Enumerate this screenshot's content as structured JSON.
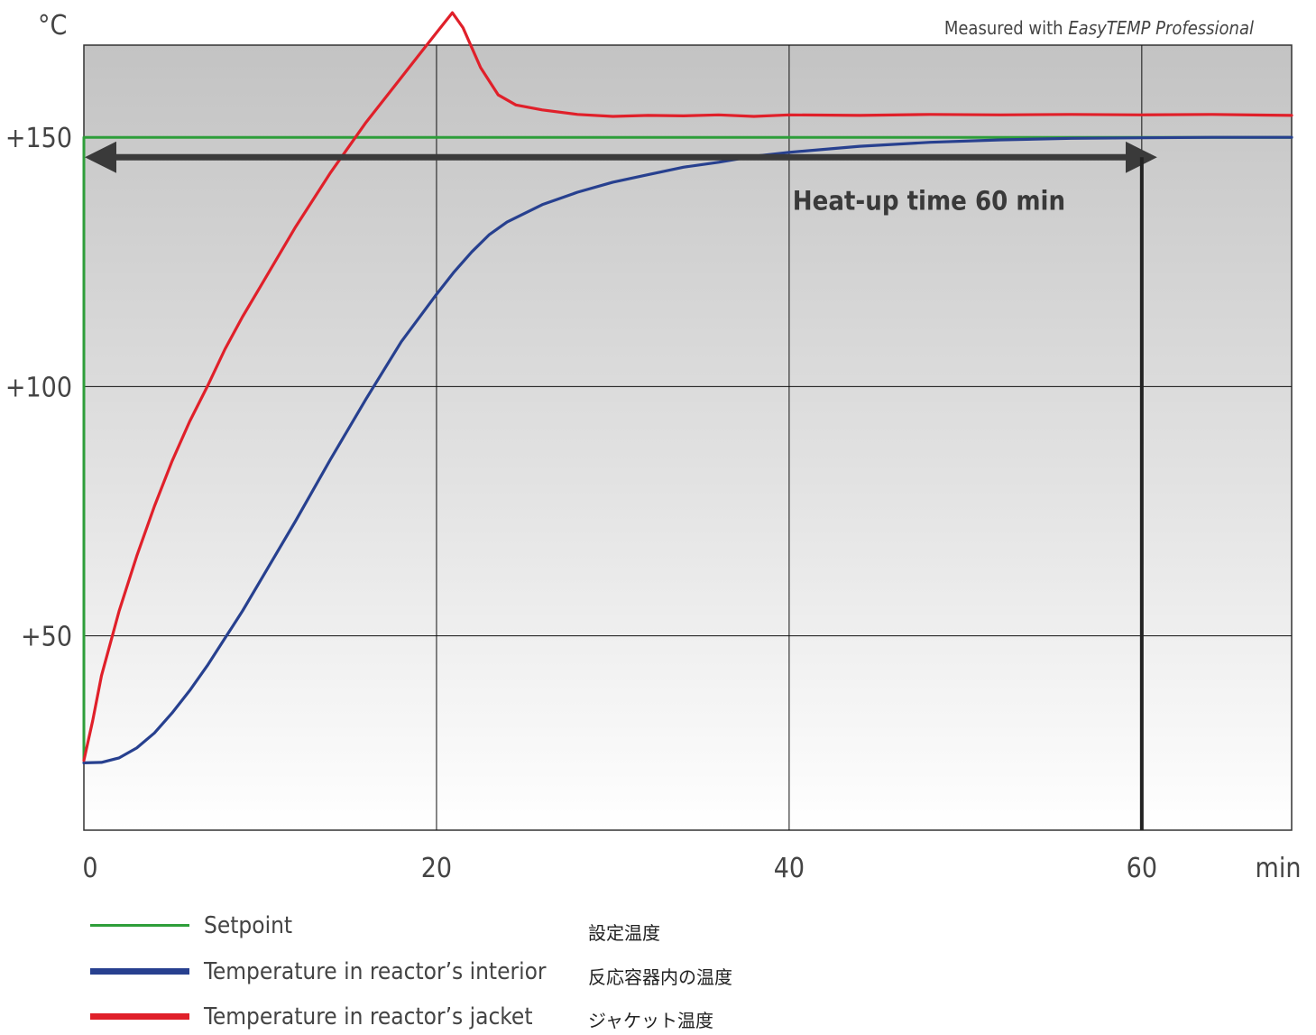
{
  "chart_data": {
    "type": "line",
    "ylabel": "°C",
    "xlabel": "min",
    "note_prefix": "Measured with ",
    "note_product": "EasyTEMP Professional",
    "xlim": [
      0,
      68.5
    ],
    "ylim": [
      11,
      168.5
    ],
    "x_ticks": [
      {
        "value": 0,
        "label": "0"
      },
      {
        "value": 20,
        "label": "20"
      },
      {
        "value": 40,
        "label": "40"
      },
      {
        "value": 60,
        "label": "60"
      }
    ],
    "y_ticks": [
      {
        "value": 50,
        "label": "+50"
      },
      {
        "value": 100,
        "label": "+100"
      },
      {
        "value": 150,
        "label": "+150"
      }
    ],
    "grid": true,
    "colors": {
      "setpoint": "#2e9e3a",
      "interior": "#27408f",
      "jacket": "#e0202a",
      "arrow": "#3a3a3a",
      "grid": "#111111"
    },
    "annotation": {
      "text": "Heat-up time 60 min",
      "x_start": 0,
      "x_end": 60,
      "y": 146
    },
    "series": [
      {
        "name": "Setpoint",
        "name_jp": "設定温度",
        "color": "#2e9e3a",
        "x": [
          0,
          0,
          68.5
        ],
        "y": [
          25,
          150,
          150
        ]
      },
      {
        "name": "Temperature in reactor’s interior",
        "name_jp": "反応容器内の温度",
        "color": "#27408f",
        "x": [
          0,
          1,
          2,
          3,
          4,
          5,
          6,
          7,
          8,
          9,
          10,
          12,
          14,
          16,
          18,
          20,
          21,
          22,
          23,
          24,
          26,
          28,
          30,
          32,
          34,
          36,
          38,
          40,
          44,
          48,
          52,
          56,
          60,
          64,
          68.5
        ],
        "y": [
          24.5,
          24.6,
          25.5,
          27.5,
          30.5,
          34.5,
          39,
          44,
          49.5,
          55,
          61,
          73,
          85.5,
          97.5,
          109,
          118.5,
          123,
          127,
          130.5,
          133,
          136.5,
          139,
          141,
          142.5,
          144,
          145,
          146.2,
          147,
          148.2,
          149,
          149.5,
          149.8,
          149.9,
          150,
          150
        ]
      },
      {
        "name": "Temperature in reactor’s jacket",
        "name_jp": "ジャケット温度",
        "color": "#e0202a",
        "x": [
          0,
          0.5,
          1,
          2,
          3,
          4,
          5,
          6,
          7,
          8,
          9,
          10,
          12,
          14,
          16,
          18,
          19,
          20,
          20.9,
          21.5,
          22.5,
          23.5,
          24.5,
          26,
          28,
          30,
          32,
          34,
          36,
          38,
          40,
          44,
          48,
          52,
          56,
          60,
          64,
          68.5
        ],
        "y": [
          25,
          33,
          42,
          55,
          66,
          76,
          85,
          93,
          100,
          107.5,
          114,
          120,
          132,
          143,
          153,
          162,
          166.5,
          171,
          175,
          172,
          164,
          158.5,
          156.5,
          155.5,
          154.6,
          154.2,
          154.4,
          154.3,
          154.5,
          154.2,
          154.5,
          154.4,
          154.6,
          154.5,
          154.6,
          154.5,
          154.6,
          154.4
        ]
      }
    ]
  }
}
